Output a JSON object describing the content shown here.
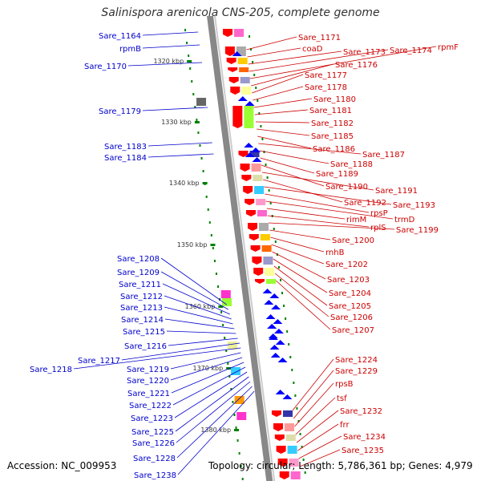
{
  "title": "Salinispora arenicola CNS-205, complete genome",
  "accession": "Accession: NC_009953",
  "topology": "Topology: circular; Length: 5,786,361 bp; Genes: 4,979",
  "colors": {
    "reverse_strand": "#0000ff",
    "forward_strand": "#ff0000",
    "backbone": "#888888",
    "tick": "#008000"
  },
  "scale": {
    "unit": "kbp",
    "ticks": [
      "1320 kbp",
      "1330 kbp",
      "1340 kbp",
      "1350 kbp",
      "1360 kbp",
      "1370 kbp",
      "1380 kbp"
    ]
  },
  "genes_left": [
    {
      "label": "Sare_1164"
    },
    {
      "label": "rpmB"
    },
    {
      "label": "Sare_1170"
    },
    {
      "label": "Sare_1179"
    },
    {
      "label": "Sare_1183"
    },
    {
      "label": "Sare_1184"
    },
    {
      "label": "Sare_1208"
    },
    {
      "label": "Sare_1209"
    },
    {
      "label": "Sare_1211"
    },
    {
      "label": "Sare_1212"
    },
    {
      "label": "Sare_1213"
    },
    {
      "label": "Sare_1214"
    },
    {
      "label": "Sare_1215"
    },
    {
      "label": "Sare_1216"
    },
    {
      "label": "Sare_1217"
    },
    {
      "label": "Sare_1218"
    },
    {
      "label": "Sare_1219"
    },
    {
      "label": "Sare_1220"
    },
    {
      "label": "Sare_1221"
    },
    {
      "label": "Sare_1222"
    },
    {
      "label": "Sare_1223"
    },
    {
      "label": "Sare_1225"
    },
    {
      "label": "Sare_1226"
    },
    {
      "label": "Sare_1228"
    },
    {
      "label": "Sare_1238"
    }
  ],
  "genes_right": [
    {
      "label": "Sare_1171"
    },
    {
      "label": "coaD"
    },
    {
      "label": "Sare_1173"
    },
    {
      "label": "Sare_1174"
    },
    {
      "label": "rpmF"
    },
    {
      "label": "Sare_1176"
    },
    {
      "label": "Sare_1177"
    },
    {
      "label": "Sare_1178"
    },
    {
      "label": "Sare_1180"
    },
    {
      "label": "Sare_1181"
    },
    {
      "label": "Sare_1182"
    },
    {
      "label": "Sare_1185"
    },
    {
      "label": "Sare_1186"
    },
    {
      "label": "Sare_1187"
    },
    {
      "label": "Sare_1188"
    },
    {
      "label": "Sare_1189"
    },
    {
      "label": "Sare_1190"
    },
    {
      "label": "Sare_1191"
    },
    {
      "label": "Sare_1192"
    },
    {
      "label": "Sare_1193"
    },
    {
      "label": "rpsP"
    },
    {
      "label": "trmD"
    },
    {
      "label": "rimM"
    },
    {
      "label": "rplS"
    },
    {
      "label": "Sare_1199"
    },
    {
      "label": "Sare_1200"
    },
    {
      "label": "rnhB"
    },
    {
      "label": "Sare_1202"
    },
    {
      "label": "Sare_1203"
    },
    {
      "label": "Sare_1204"
    },
    {
      "label": "Sare_1205"
    },
    {
      "label": "Sare_1206"
    },
    {
      "label": "Sare_1207"
    },
    {
      "label": "Sare_1224"
    },
    {
      "label": "Sare_1229"
    },
    {
      "label": "rpsB"
    },
    {
      "label": "tsf"
    },
    {
      "label": "Sare_1232"
    },
    {
      "label": "frr"
    },
    {
      "label": "Sare_1234"
    },
    {
      "label": "Sare_1235"
    }
  ]
}
